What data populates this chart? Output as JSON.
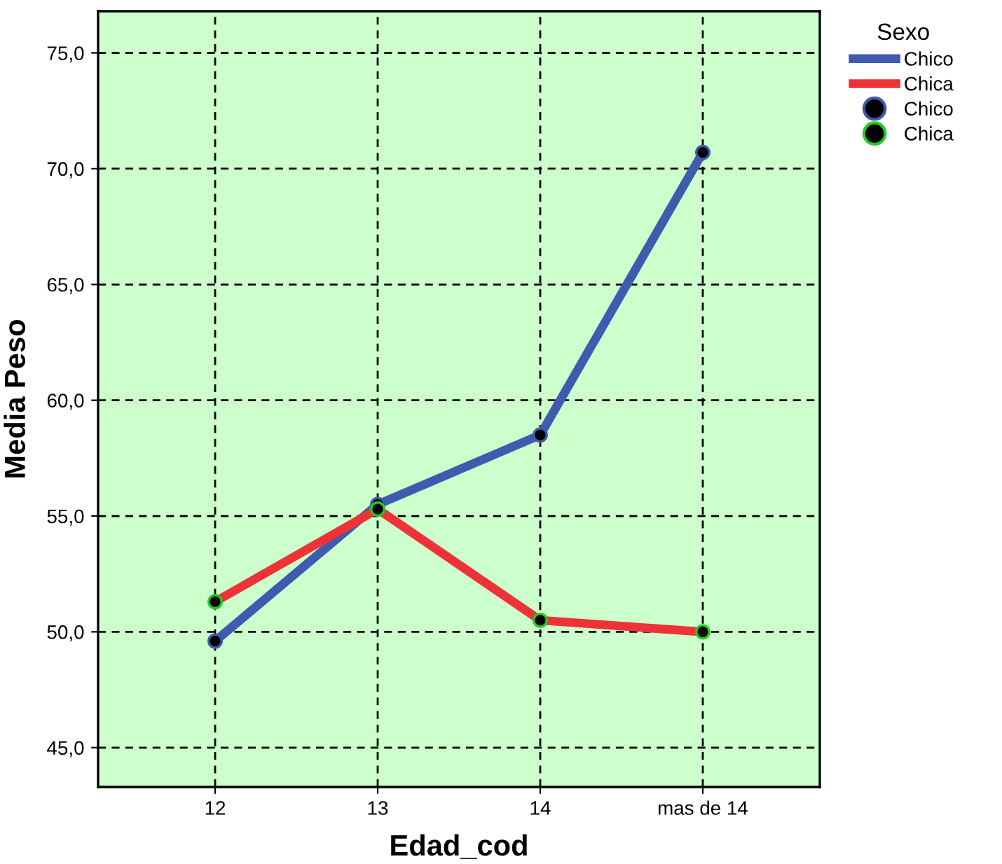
{
  "chart_data": {
    "type": "line",
    "xlabel": "Edad_cod",
    "ylabel": "Media Peso",
    "legend_title": "Sexo",
    "categories": [
      "12",
      "13",
      "14",
      "mas de 14"
    ],
    "series": [
      {
        "name": "Chico",
        "color": "#3f5bb0",
        "values": [
          49.6,
          55.5,
          58.5,
          70.7
        ]
      },
      {
        "name": "Chica",
        "color": "#ee3338",
        "values": [
          51.3,
          55.3,
          50.5,
          50.0
        ]
      },
      {
        "name": "Chico",
        "type": "scatter",
        "color": "#000000",
        "values": [
          49.6,
          55.5,
          58.5,
          70.7
        ]
      },
      {
        "name": "Chica",
        "type": "scatter",
        "color": "#000000",
        "values": [
          51.3,
          55.3,
          50.5,
          50.0
        ]
      }
    ],
    "ylim": [
      43.3,
      76.8
    ],
    "yticks": [
      {
        "value": 45,
        "label": "45,0"
      },
      {
        "value": 50,
        "label": "50,0"
      },
      {
        "value": 55,
        "label": "55,0"
      },
      {
        "value": 60,
        "label": "60,0"
      },
      {
        "value": 65,
        "label": "65,0"
      },
      {
        "value": 70,
        "label": "70,0"
      },
      {
        "value": 75,
        "label": "75,0"
      }
    ],
    "grid": true,
    "legend": "right",
    "line_style": "solid"
  }
}
